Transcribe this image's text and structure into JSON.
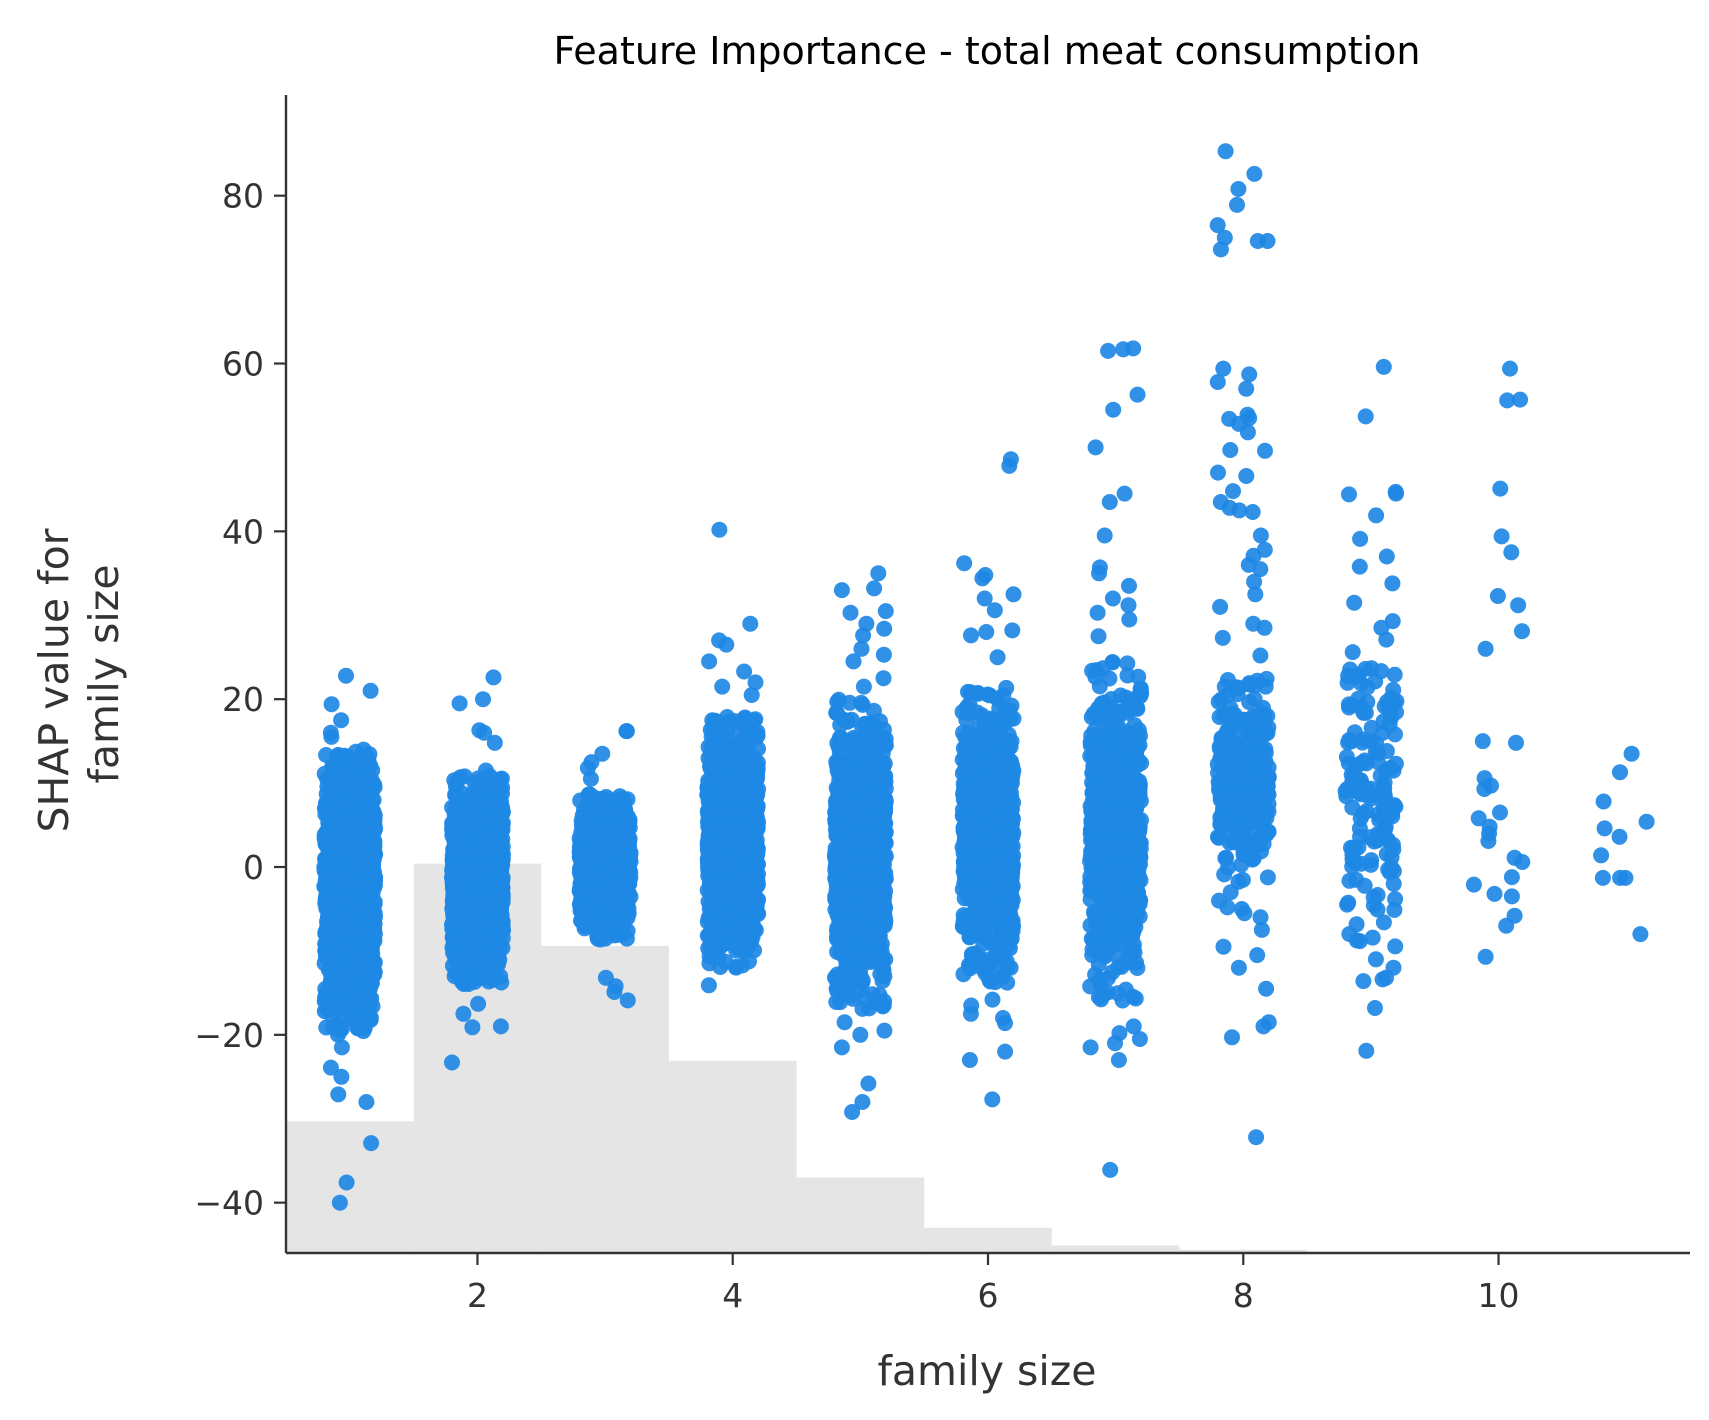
{
  "chart_data": {
    "type": "scatter",
    "title": "Feature Importance - total meat consumption",
    "xlabel": "family size",
    "ylabel": [
      "SHAP value for",
      "family size"
    ],
    "xlim": [
      0.5,
      11.5
    ],
    "ylim": [
      -46,
      92
    ],
    "xticks": [
      2,
      4,
      6,
      8,
      10
    ],
    "xtick_labels": [
      "2",
      "4",
      "6",
      "8",
      "10"
    ],
    "yticks": [
      -40,
      -20,
      0,
      20,
      40,
      60,
      80
    ],
    "ytick_labels": [
      "−40",
      "−20",
      "0",
      "20",
      "40",
      "60",
      "80"
    ],
    "grid": false,
    "point_color": "#1e88e5",
    "histogram_color": "#e5e5e5",
    "histogram": {
      "bin_edges": [
        0.5,
        1.5,
        2.5,
        3.5,
        4.5,
        5.5,
        6.5,
        7.5,
        8.5,
        9.5,
        10.5,
        11.5
      ],
      "top_y": [
        -30.3,
        0.4,
        -9.4,
        -23.1,
        -37.0,
        -43.0,
        -45.1,
        -45.6,
        -45.9,
        -46.0,
        -46.0
      ]
    },
    "groups": [
      {
        "x": 1,
        "core_min": -20,
        "core_max": 14,
        "count": 1400,
        "extra_y": [
          22.8,
          21.0,
          19.4,
          17.5,
          16.0,
          15.5,
          -21.5,
          -23.9,
          -25.0,
          -27.1,
          -28.0,
          -32.9,
          -37.6,
          -40.0
        ]
      },
      {
        "x": 2,
        "core_min": -14,
        "core_max": 11,
        "count": 1300,
        "extra_y": [
          22.6,
          20.0,
          19.5,
          16.3,
          16.0,
          14.8,
          11.5,
          -16.3,
          -17.5,
          -19.0,
          -19.1,
          -23.3
        ]
      },
      {
        "x": 3,
        "core_min": -9,
        "core_max": 9,
        "count": 900,
        "extra_y": [
          16.2,
          16.2,
          13.5,
          12.5,
          11.8,
          10.5,
          -13.2,
          -14.2,
          -14.9,
          -15.9
        ]
      },
      {
        "x": 4,
        "core_min": -12,
        "core_max": 18,
        "count": 1000,
        "extra_y": [
          40.2,
          29.0,
          27.0,
          26.5,
          24.5,
          23.3,
          22.0,
          21.5,
          20.5,
          -14.1
        ]
      },
      {
        "x": 5,
        "core_min": -17,
        "core_max": 20,
        "count": 1100,
        "extra_y": [
          35.0,
          33.2,
          33.0,
          30.5,
          30.3,
          29.0,
          28.4,
          27.6,
          26.0,
          25.3,
          24.5,
          22.5,
          21.5,
          -18.5,
          -19.5,
          -20.0,
          -21.5,
          -25.8,
          -28.0,
          -29.2
        ]
      },
      {
        "x": 6,
        "core_min": -14,
        "core_max": 22,
        "count": 900,
        "extra_y": [
          48.6,
          47.8,
          36.2,
          34.8,
          34.4,
          32.5,
          32.0,
          30.6,
          28.2,
          28.0,
          27.6,
          25.0,
          -15.8,
          -16.5,
          -17.5,
          -18.0,
          -18.6,
          -22.0,
          -23.0,
          -27.7
        ]
      },
      {
        "x": 7,
        "core_min": -17,
        "core_max": 25,
        "count": 700,
        "extra_y": [
          61.8,
          61.7,
          61.5,
          56.3,
          54.5,
          50.0,
          44.5,
          43.5,
          39.5,
          35.7,
          35.0,
          33.5,
          32.0,
          31.2,
          30.3,
          29.5,
          27.5,
          -19.0,
          -19.8,
          -20.5,
          -21.0,
          -21.5,
          -23.0,
          -36.1
        ]
      },
      {
        "x": 8,
        "core_min": -2,
        "core_max": 24,
        "count": 260,
        "extra_y": [
          85.3,
          82.6,
          80.8,
          78.9,
          76.5,
          75.0,
          74.6,
          74.6,
          73.6,
          59.4,
          58.7,
          57.8,
          57.0,
          53.9,
          53.5,
          53.4,
          52.8,
          51.8,
          49.7,
          49.6,
          47.0,
          46.6,
          44.8,
          43.5,
          42.8,
          42.3,
          42.5,
          39.5,
          37.8,
          37.1,
          36.0,
          35.5,
          34.0,
          32.5,
          31.0,
          29.0,
          28.5,
          27.3,
          25.2,
          -3.0,
          -4.0,
          -4.8,
          -5.0,
          -5.5,
          -6.0,
          -7.5,
          -9.5,
          -10.5,
          -12.0,
          -14.5,
          -18.5,
          -19.0,
          -20.3,
          -32.2
        ]
      },
      {
        "x": 9,
        "core_min": -10,
        "core_max": 28,
        "count": 150,
        "extra_y": [
          59.6,
          53.7,
          44.7,
          44.5,
          44.4,
          41.9,
          39.1,
          37.0,
          35.8,
          33.8,
          31.5,
          29.3,
          28.5,
          -11.0,
          -12.0,
          -13.2,
          -13.4,
          -13.6,
          -16.8,
          -21.9
        ]
      },
      {
        "x": 10,
        "core_min": 999,
        "core_max": 999,
        "count": 0,
        "extra_y": [
          59.4,
          55.7,
          55.6,
          45.1,
          39.4,
          37.5,
          32.3,
          31.2,
          28.1,
          26.0,
          15.0,
          14.8,
          10.6,
          9.7,
          9.3,
          6.5,
          5.8,
          4.8,
          4.0,
          3.1,
          1.1,
          0.6,
          -1.2,
          -2.1,
          -3.2,
          -3.5,
          -5.8,
          -7.0,
          -10.7
        ]
      },
      {
        "x": 11,
        "core_min": 999,
        "core_max": 999,
        "count": 0,
        "extra_y": [
          13.5,
          11.3,
          7.8,
          5.4,
          4.6,
          3.6,
          1.4,
          -1.3,
          -1.3,
          -1.3,
          -8.0
        ]
      }
    ]
  }
}
